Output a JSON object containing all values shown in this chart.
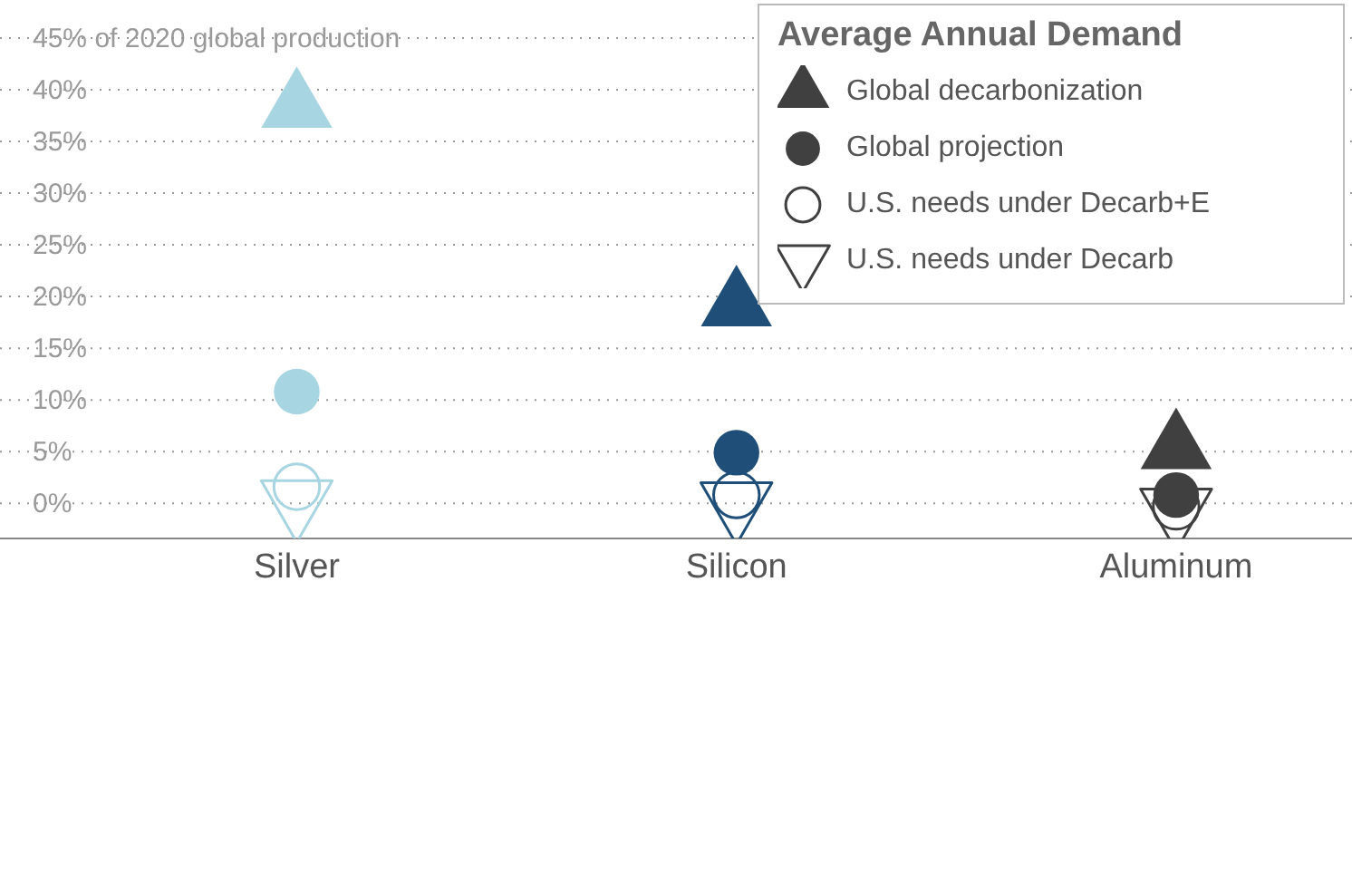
{
  "chart_data": {
    "type": "scatter",
    "legend_title": "Average Annual Demand",
    "categories": [
      "Silver",
      "Silicon",
      "Aluminum"
    ],
    "ylim": [
      -3.4,
      45
    ],
    "yticks": [
      {
        "value": 0,
        "label": "0%"
      },
      {
        "value": 5,
        "label": "5%"
      },
      {
        "value": 10,
        "label": "10%"
      },
      {
        "value": 15,
        "label": "15%"
      },
      {
        "value": 20,
        "label": "20%"
      },
      {
        "value": 25,
        "label": "25%"
      },
      {
        "value": 30,
        "label": "30%"
      },
      {
        "value": 35,
        "label": "35%"
      },
      {
        "value": 40,
        "label": "40%"
      },
      {
        "value": 45,
        "label": "45% of 2020 global production"
      }
    ],
    "grid": "y",
    "legend": "top right",
    "series": [
      {
        "name": "Global decarbonization",
        "marker": "triangle",
        "colors": [
          "#a8d5e2",
          "#1f4e79",
          "#404040"
        ],
        "values": [
          38.3,
          19.1,
          5.3
        ]
      },
      {
        "name": "Global projection",
        "marker": "circle",
        "colors": [
          "#a8d5e2",
          "#1f4e79",
          "#404040"
        ],
        "values": [
          10.8,
          4.9,
          0.8
        ]
      },
      {
        "name": "U.S. needs under Decarb+E",
        "marker": "circle-open",
        "colors": [
          "#a8d5e2",
          "#1f4e79",
          "#404040"
        ],
        "values": [
          1.6,
          0.8,
          -0.3
        ]
      },
      {
        "name": "U.S. needs under Decarb",
        "marker": "triangle-down-open",
        "colors": [
          "#a8d5e2",
          "#1f4e79",
          "#404040"
        ],
        "values": [
          0.2,
          0,
          -0.6
        ]
      }
    ]
  }
}
